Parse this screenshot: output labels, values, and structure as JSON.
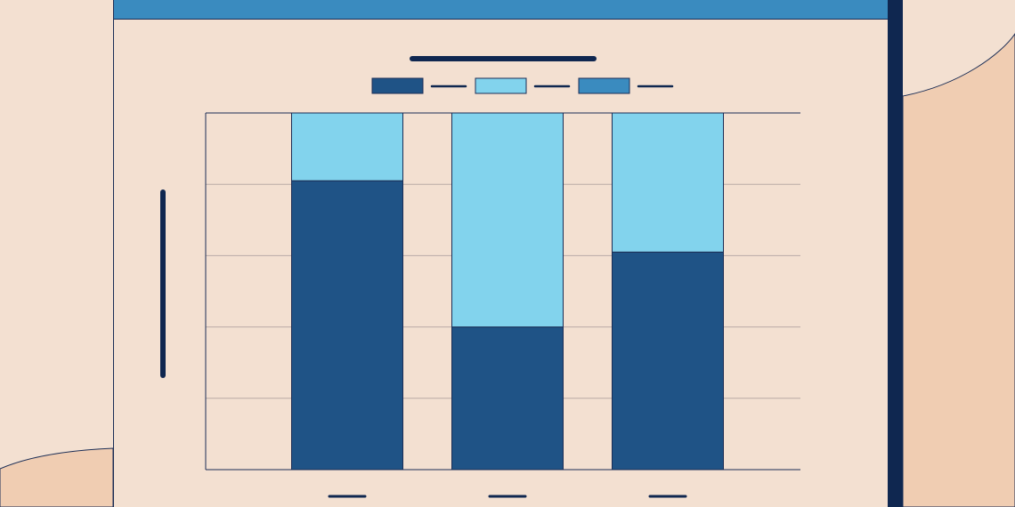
{
  "colors": {
    "background": "#f3e0d1",
    "blob": "#f0cdb2",
    "topbar": "#3a8bbf",
    "frame_dark": "#0f2750",
    "series_dark": "#1f5386",
    "series_light": "#82d3ed",
    "series_mid": "#3a8bbf",
    "grid": "#b9aaa6",
    "axis": "#1b2d55",
    "placeholder": "#0f2750"
  },
  "chart_data": {
    "type": "bar",
    "stacked": true,
    "title": "",
    "xlabel": "",
    "ylabel": "",
    "categories": [
      "",
      "",
      ""
    ],
    "ylim": [
      0,
      100
    ],
    "grid": true,
    "legend_position": "top-center",
    "series": [
      {
        "color": "#1f5386",
        "values": [
          81,
          40,
          61
        ]
      },
      {
        "color": "#82d3ed",
        "values": [
          19,
          60,
          39
        ]
      },
      {
        "color": "#3a8bbf",
        "values": [
          0,
          0,
          0
        ]
      }
    ]
  }
}
